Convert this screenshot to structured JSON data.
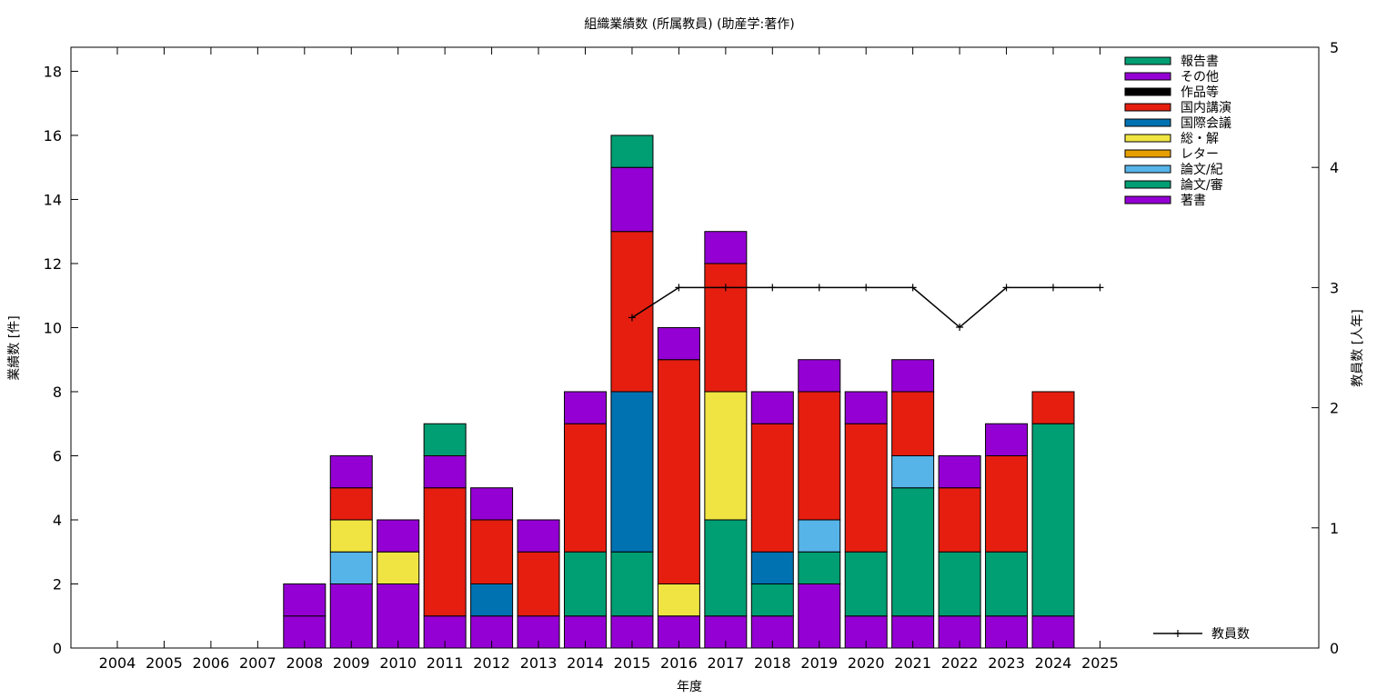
{
  "chart_data": {
    "type": "bar",
    "stacked": true,
    "title": "組織業績数 (所属教員) (助産学:著作)",
    "xlabel": "年度",
    "ylabel": "業績数 [件]",
    "y2label": "教員数 [人年]",
    "ylim": [
      0,
      18.75
    ],
    "y2lim": [
      0,
      5
    ],
    "yticks": [
      0,
      2,
      4,
      6,
      8,
      10,
      12,
      14,
      16,
      18
    ],
    "y2ticks": [
      0,
      1,
      2,
      3,
      4,
      5
    ],
    "categories": [
      "2004",
      "2005",
      "2006",
      "2007",
      "2008",
      "2009",
      "2010",
      "2011",
      "2012",
      "2013",
      "2014",
      "2015",
      "2016",
      "2017",
      "2018",
      "2019",
      "2020",
      "2021",
      "2022",
      "2023",
      "2024",
      "2025"
    ],
    "series": [
      {
        "name": "著書",
        "color": "#9400d3",
        "values": [
          0,
          0,
          0,
          0,
          1,
          2,
          2,
          1,
          1,
          1,
          1,
          1,
          1,
          1,
          1,
          2,
          1,
          1,
          1,
          1,
          1,
          0
        ]
      },
      {
        "name": "論文/審",
        "color": "#009e73",
        "values": [
          0,
          0,
          0,
          0,
          0,
          0,
          0,
          0,
          0,
          0,
          2,
          2,
          0,
          3,
          1,
          1,
          2,
          4,
          2,
          2,
          6,
          0
        ]
      },
      {
        "name": "論文/紀",
        "color": "#56b4e9",
        "values": [
          0,
          0,
          0,
          0,
          0,
          1,
          0,
          0,
          0,
          0,
          0,
          0,
          0,
          0,
          0,
          1,
          0,
          1,
          0,
          0,
          0,
          0
        ]
      },
      {
        "name": "レター",
        "color": "#e69f00",
        "values": [
          0,
          0,
          0,
          0,
          0,
          0,
          0,
          0,
          0,
          0,
          0,
          0,
          0,
          0,
          0,
          0,
          0,
          0,
          0,
          0,
          0,
          0
        ]
      },
      {
        "name": "総・解",
        "color": "#f0e442",
        "values": [
          0,
          0,
          0,
          0,
          0,
          1,
          1,
          0,
          0,
          0,
          0,
          0,
          1,
          4,
          0,
          0,
          0,
          0,
          0,
          0,
          0,
          0
        ]
      },
      {
        "name": "国際会議",
        "color": "#0072b2",
        "values": [
          0,
          0,
          0,
          0,
          0,
          0,
          0,
          0,
          1,
          0,
          0,
          5,
          0,
          0,
          1,
          0,
          0,
          0,
          0,
          0,
          0,
          0
        ]
      },
      {
        "name": "国内講演",
        "color": "#e51e10",
        "values": [
          0,
          0,
          0,
          0,
          0,
          1,
          0,
          4,
          2,
          2,
          4,
          5,
          7,
          4,
          4,
          4,
          4,
          2,
          2,
          3,
          1,
          0
        ]
      },
      {
        "name": "作品等",
        "color": "#000000",
        "values": [
          0,
          0,
          0,
          0,
          0,
          0,
          0,
          0,
          0,
          0,
          0,
          0,
          0,
          0,
          0,
          0,
          0,
          0,
          0,
          0,
          0,
          0
        ]
      },
      {
        "name": "その他",
        "color": "#9400d3",
        "values": [
          0,
          0,
          0,
          0,
          1,
          1,
          1,
          1,
          1,
          1,
          1,
          2,
          1,
          1,
          1,
          1,
          1,
          1,
          1,
          1,
          0,
          0
        ]
      },
      {
        "name": "報告書",
        "color": "#009e73",
        "values": [
          0,
          0,
          0,
          0,
          0,
          0,
          0,
          1,
          0,
          0,
          0,
          1,
          0,
          0,
          0,
          0,
          0,
          0,
          0,
          0,
          0,
          0
        ]
      }
    ],
    "line": {
      "name": "教員数",
      "axis": "right",
      "color": "#000000",
      "x": [
        "2015",
        "2016",
        "2017",
        "2018",
        "2019",
        "2020",
        "2021",
        "2022",
        "2023",
        "2024",
        "2025"
      ],
      "values": [
        2.75,
        3,
        3,
        3,
        3,
        3,
        3,
        2.67,
        3,
        3,
        3
      ]
    },
    "legend_order": [
      "報告書",
      "その他",
      "作品等",
      "国内講演",
      "国際会議",
      "総・解",
      "レター",
      "論文/紀",
      "論文/審",
      "著書"
    ],
    "legend_position": "top-right",
    "grid": false
  }
}
